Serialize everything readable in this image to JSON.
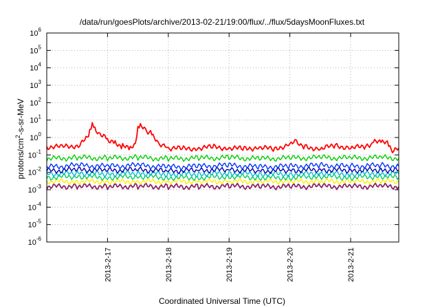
{
  "chart_data": {
    "type": "line",
    "title": "/data/run/goesPlots/archive/2013-02-21/19:00/flux/../flux/5daysMoonFluxes.txt",
    "xlabel": "Coordinated Universal Time (UTC)",
    "ylabel_parts": {
      "pre": "protons/cm",
      "sup": "2",
      "post": "-s-sr-MeV"
    },
    "xlim": [
      "2013-02-16T00:00",
      "2013-02-21T19:00"
    ],
    "ylim": [
      1e-06,
      1000000.0
    ],
    "yscale": "log",
    "grid": true,
    "x_ticks": [
      {
        "date": "2013-02-17T00:00",
        "label": "2013-2-17"
      },
      {
        "date": "2013-02-18T00:00",
        "label": "2013-2-18"
      },
      {
        "date": "2013-02-19T00:00",
        "label": "2013-2-19"
      },
      {
        "date": "2013-02-20T00:00",
        "label": "2013-2-20"
      },
      {
        "date": "2013-02-21T00:00",
        "label": "2013-2-21"
      }
    ],
    "y_ticks": [
      {
        "value": 1000000.0,
        "base": "10",
        "exp": "6"
      },
      {
        "value": 100000.0,
        "base": "10",
        "exp": "5"
      },
      {
        "value": 10000.0,
        "base": "10",
        "exp": "4"
      },
      {
        "value": 1000.0,
        "base": "10",
        "exp": "3"
      },
      {
        "value": 100.0,
        "base": "10",
        "exp": "2"
      },
      {
        "value": 10.0,
        "base": "10",
        "exp": "1"
      },
      {
        "value": 1.0,
        "base": "10",
        "exp": "0"
      },
      {
        "value": 0.1,
        "base": "10",
        "exp": "-1"
      },
      {
        "value": 0.01,
        "base": "10",
        "exp": "-2"
      },
      {
        "value": 0.001,
        "base": "10",
        "exp": "-3"
      },
      {
        "value": 0.0001,
        "base": "10",
        "exp": "-4"
      },
      {
        "value": 1e-05,
        "base": "10",
        "exp": "-5"
      },
      {
        "value": 1e-06,
        "base": "10",
        "exp": "-6"
      }
    ],
    "series": [
      {
        "color": "#ff0000",
        "points": [
          [
            "2013-02-16T00:00",
            0.3
          ],
          [
            "2013-02-16T06:00",
            0.28
          ],
          [
            "2013-02-16T12:00",
            0.35
          ],
          [
            "2013-02-16T14:00",
            0.5
          ],
          [
            "2013-02-16T16:00",
            1.0
          ],
          [
            "2013-02-16T17:00",
            2.5
          ],
          [
            "2013-02-16T18:00",
            5.0
          ],
          [
            "2013-02-16T19:00",
            3.0
          ],
          [
            "2013-02-16T21:00",
            1.5
          ],
          [
            "2013-02-17T00:00",
            0.8
          ],
          [
            "2013-02-17T03:00",
            0.5
          ],
          [
            "2013-02-17T06:00",
            0.3
          ],
          [
            "2013-02-17T09:00",
            0.25
          ],
          [
            "2013-02-17T11:00",
            0.35
          ],
          [
            "2013-02-17T12:00",
            4.0
          ],
          [
            "2013-02-17T13:00",
            5.0
          ],
          [
            "2013-02-17T15:00",
            2.5
          ],
          [
            "2013-02-17T17:00",
            2.0
          ],
          [
            "2013-02-17T18:00",
            1.0
          ],
          [
            "2013-02-17T20:00",
            0.5
          ],
          [
            "2013-02-18T00:00",
            0.25
          ],
          [
            "2013-02-18T06:00",
            0.22
          ],
          [
            "2013-02-18T12:00",
            0.25
          ],
          [
            "2013-02-18T18:00",
            0.28
          ],
          [
            "2013-02-19T00:00",
            0.25
          ],
          [
            "2013-02-19T06:00",
            0.22
          ],
          [
            "2013-02-19T12:00",
            0.28
          ],
          [
            "2013-02-19T18:00",
            0.2
          ],
          [
            "2013-02-20T00:00",
            0.45
          ],
          [
            "2013-02-20T02:00",
            0.6
          ],
          [
            "2013-02-20T06:00",
            0.3
          ],
          [
            "2013-02-20T12:00",
            0.22
          ],
          [
            "2013-02-20T18:00",
            0.35
          ],
          [
            "2013-02-21T00:00",
            0.25
          ],
          [
            "2013-02-21T06:00",
            0.3
          ],
          [
            "2013-02-21T09:00",
            0.5
          ],
          [
            "2013-02-21T12:00",
            0.6
          ],
          [
            "2013-02-21T15:00",
            0.4
          ],
          [
            "2013-02-21T17:00",
            0.15
          ],
          [
            "2013-02-21T19:00",
            0.25
          ]
        ]
      },
      {
        "color": "#00cc00",
        "points": [
          [
            "2013-02-16T00:00",
            0.06
          ],
          [
            "2013-02-16T12:00",
            0.07
          ],
          [
            "2013-02-17T00:00",
            0.065
          ],
          [
            "2013-02-17T12:00",
            0.07
          ],
          [
            "2013-02-18T00:00",
            0.06
          ],
          [
            "2013-02-18T12:00",
            0.065
          ],
          [
            "2013-02-19T00:00",
            0.07
          ],
          [
            "2013-02-19T12:00",
            0.06
          ],
          [
            "2013-02-20T00:00",
            0.065
          ],
          [
            "2013-02-20T12:00",
            0.07
          ],
          [
            "2013-02-21T00:00",
            0.065
          ],
          [
            "2013-02-21T12:00",
            0.07
          ],
          [
            "2013-02-21T19:00",
            0.065
          ]
        ]
      },
      {
        "color": "#0033ff",
        "points": [
          [
            "2013-02-16T00:00",
            0.02
          ],
          [
            "2013-02-16T12:00",
            0.025
          ],
          [
            "2013-02-17T00:00",
            0.022
          ],
          [
            "2013-02-17T12:00",
            0.025
          ],
          [
            "2013-02-18T00:00",
            0.02
          ],
          [
            "2013-02-18T12:00",
            0.022
          ],
          [
            "2013-02-19T00:00",
            0.025
          ],
          [
            "2013-02-19T12:00",
            0.02
          ],
          [
            "2013-02-20T00:00",
            0.022
          ],
          [
            "2013-02-20T12:00",
            0.025
          ],
          [
            "2013-02-21T00:00",
            0.022
          ],
          [
            "2013-02-21T12:00",
            0.025
          ],
          [
            "2013-02-21T19:00",
            0.022
          ]
        ]
      },
      {
        "color": "#0000aa",
        "points": [
          [
            "2013-02-16T00:00",
            0.012
          ],
          [
            "2013-02-16T12:00",
            0.014
          ],
          [
            "2013-02-17T00:00",
            0.013
          ],
          [
            "2013-02-17T12:00",
            0.014
          ],
          [
            "2013-02-18T00:00",
            0.012
          ],
          [
            "2013-02-18T12:00",
            0.013
          ],
          [
            "2013-02-19T00:00",
            0.014
          ],
          [
            "2013-02-19T12:00",
            0.012
          ],
          [
            "2013-02-20T00:00",
            0.013
          ],
          [
            "2013-02-20T12:00",
            0.014
          ],
          [
            "2013-02-21T00:00",
            0.013
          ],
          [
            "2013-02-21T12:00",
            0.014
          ],
          [
            "2013-02-21T19:00",
            0.013
          ]
        ]
      },
      {
        "color": "#00bbcc",
        "points": [
          [
            "2013-02-16T00:00",
            0.008
          ],
          [
            "2013-02-16T12:00",
            0.009
          ],
          [
            "2013-02-17T00:00",
            0.008
          ],
          [
            "2013-02-17T12:00",
            0.009
          ],
          [
            "2013-02-18T00:00",
            0.008
          ],
          [
            "2013-02-18T12:00",
            0.008
          ],
          [
            "2013-02-19T00:00",
            0.009
          ],
          [
            "2013-02-19T12:00",
            0.008
          ],
          [
            "2013-02-20T00:00",
            0.008
          ],
          [
            "2013-02-20T12:00",
            0.009
          ],
          [
            "2013-02-21T00:00",
            0.008
          ],
          [
            "2013-02-21T12:00",
            0.009
          ],
          [
            "2013-02-21T19:00",
            0.008
          ]
        ]
      },
      {
        "color": "#00cc66",
        "points": [
          [
            "2013-02-16T00:00",
            0.005
          ],
          [
            "2013-02-16T12:00",
            0.006
          ],
          [
            "2013-02-17T00:00",
            0.005
          ],
          [
            "2013-02-17T12:00",
            0.006
          ],
          [
            "2013-02-18T00:00",
            0.005
          ],
          [
            "2013-02-18T12:00",
            0.005
          ],
          [
            "2013-02-19T00:00",
            0.006
          ],
          [
            "2013-02-19T12:00",
            0.005
          ],
          [
            "2013-02-20T00:00",
            0.005
          ],
          [
            "2013-02-20T12:00",
            0.006
          ],
          [
            "2013-02-21T00:00",
            0.005
          ],
          [
            "2013-02-21T12:00",
            0.006
          ],
          [
            "2013-02-21T19:00",
            0.005
          ]
        ]
      },
      {
        "color": "#ffee00",
        "points": [
          [
            "2013-02-16T00:00",
            0.003
          ],
          [
            "2013-02-16T12:00",
            0.003
          ],
          [
            "2013-02-17T00:00",
            0.003
          ],
          [
            "2013-02-17T12:00",
            0.003
          ],
          [
            "2013-02-18T00:00",
            0.003
          ],
          [
            "2013-02-18T12:00",
            0.003
          ],
          [
            "2013-02-19T00:00",
            0.003
          ],
          [
            "2013-02-19T12:00",
            0.003
          ],
          [
            "2013-02-20T00:00",
            0.003
          ],
          [
            "2013-02-20T12:00",
            0.003
          ],
          [
            "2013-02-21T00:00",
            0.003
          ],
          [
            "2013-02-21T12:00",
            0.003
          ],
          [
            "2013-02-21T19:00",
            0.003
          ]
        ]
      },
      {
        "color": "#882266",
        "points": [
          [
            "2013-02-16T00:00",
            0.0015
          ],
          [
            "2013-02-16T12:00",
            0.0016
          ],
          [
            "2013-02-17T00:00",
            0.0015
          ],
          [
            "2013-02-17T12:00",
            0.0016
          ],
          [
            "2013-02-18T00:00",
            0.0015
          ],
          [
            "2013-02-18T12:00",
            0.0015
          ],
          [
            "2013-02-19T00:00",
            0.0016
          ],
          [
            "2013-02-19T12:00",
            0.0015
          ],
          [
            "2013-02-20T00:00",
            0.0015
          ],
          [
            "2013-02-20T12:00",
            0.0016
          ],
          [
            "2013-02-21T00:00",
            0.0015
          ],
          [
            "2013-02-21T12:00",
            0.0016
          ],
          [
            "2013-02-21T19:00",
            0.0015
          ]
        ]
      }
    ]
  }
}
